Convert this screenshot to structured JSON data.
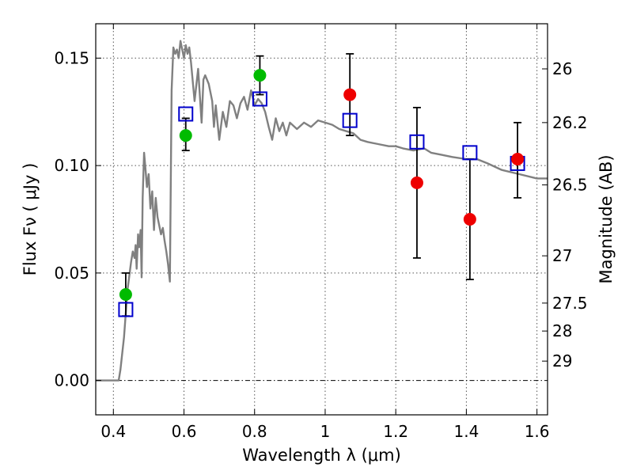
{
  "chart_data": {
    "type": "scatter",
    "xlabel": "Wavelength  λ (μm)",
    "ylabel": "Flux  Fν  ( μJy )",
    "y2label": "Magnitude (AB)",
    "xlim": [
      0.35,
      1.63
    ],
    "ylim": [
      -0.016,
      0.166
    ],
    "x_ticks": [
      0.4,
      0.6,
      0.8,
      1.0,
      1.2,
      1.4,
      1.6
    ],
    "x_tick_labels": [
      "0.4",
      "0.6",
      "0.8",
      "1",
      "1.2",
      "1.4",
      "1.6"
    ],
    "y_ticks": [
      0.0,
      0.05,
      0.1,
      0.15
    ],
    "y_tick_labels": [
      "0.00",
      "0.05",
      "0.10",
      "0.15"
    ],
    "y2_ticks": [
      {
        "label": "26",
        "flux": 0.145
      },
      {
        "label": "26.2",
        "flux": 0.12
      },
      {
        "label": "26.5",
        "flux": 0.091
      },
      {
        "label": "27",
        "flux": 0.058
      },
      {
        "label": "27.5",
        "flux": 0.036
      },
      {
        "label": "28",
        "flux": 0.023
      },
      {
        "label": "29",
        "flux": 0.009
      }
    ],
    "grid": true,
    "zero_line": true,
    "series": [
      {
        "kind": "line",
        "color": "#808080",
        "x": [
          0.35,
          0.415,
          0.42,
          0.43,
          0.44,
          0.45,
          0.455,
          0.46,
          0.463,
          0.466,
          0.47,
          0.473,
          0.477,
          0.48,
          0.483,
          0.487,
          0.49,
          0.495,
          0.5,
          0.505,
          0.51,
          0.515,
          0.52,
          0.525,
          0.53,
          0.535,
          0.54,
          0.545,
          0.55,
          0.555,
          0.56,
          0.565,
          0.57,
          0.575,
          0.58,
          0.585,
          0.59,
          0.595,
          0.6,
          0.605,
          0.61,
          0.615,
          0.62,
          0.63,
          0.64,
          0.65,
          0.655,
          0.66,
          0.67,
          0.68,
          0.685,
          0.69,
          0.7,
          0.71,
          0.72,
          0.73,
          0.74,
          0.75,
          0.76,
          0.77,
          0.78,
          0.79,
          0.8,
          0.81,
          0.82,
          0.83,
          0.84,
          0.85,
          0.86,
          0.87,
          0.88,
          0.89,
          0.9,
          0.92,
          0.94,
          0.96,
          0.98,
          1.0,
          1.02,
          1.04,
          1.06,
          1.08,
          1.1,
          1.12,
          1.15,
          1.18,
          1.2,
          1.22,
          1.25,
          1.28,
          1.3,
          1.33,
          1.36,
          1.4,
          1.43,
          1.46,
          1.5,
          1.55,
          1.6,
          1.63
        ],
        "y": [
          0.0,
          0.0,
          0.005,
          0.02,
          0.042,
          0.055,
          0.06,
          0.057,
          0.063,
          0.052,
          0.068,
          0.062,
          0.07,
          0.048,
          0.085,
          0.106,
          0.1,
          0.09,
          0.096,
          0.08,
          0.088,
          0.07,
          0.085,
          0.076,
          0.072,
          0.068,
          0.071,
          0.065,
          0.06,
          0.054,
          0.046,
          0.135,
          0.155,
          0.152,
          0.154,
          0.15,
          0.158,
          0.154,
          0.15,
          0.156,
          0.152,
          0.155,
          0.148,
          0.13,
          0.145,
          0.12,
          0.14,
          0.142,
          0.138,
          0.13,
          0.118,
          0.128,
          0.112,
          0.125,
          0.118,
          0.13,
          0.128,
          0.122,
          0.129,
          0.132,
          0.126,
          0.135,
          0.128,
          0.131,
          0.129,
          0.125,
          0.118,
          0.112,
          0.122,
          0.116,
          0.12,
          0.114,
          0.12,
          0.117,
          0.12,
          0.118,
          0.121,
          0.12,
          0.119,
          0.117,
          0.116,
          0.115,
          0.112,
          0.111,
          0.11,
          0.109,
          0.109,
          0.108,
          0.107,
          0.108,
          0.106,
          0.105,
          0.104,
          0.103,
          0.103,
          0.101,
          0.098,
          0.096,
          0.094,
          0.094
        ]
      },
      {
        "kind": "points",
        "marker": "open-square",
        "color": "#0000cc",
        "x": [
          0.435,
          0.605,
          0.815,
          1.07,
          1.26,
          1.41,
          1.545
        ],
        "y": [
          0.033,
          0.124,
          0.131,
          0.121,
          0.111,
          0.106,
          0.101
        ]
      },
      {
        "kind": "points",
        "marker": "circle",
        "color": "#00bb00",
        "x": [
          0.435,
          0.605,
          0.815
        ],
        "y": [
          0.04,
          0.114,
          0.142
        ]
      },
      {
        "kind": "points",
        "marker": "circle",
        "color": "#ee0000",
        "x": [
          1.07,
          1.26,
          1.41,
          1.545
        ],
        "y": [
          0.133,
          0.092,
          0.075,
          0.103
        ]
      }
    ],
    "error_bars": [
      {
        "x": 0.435,
        "lo": 0.03,
        "hi": 0.05
      },
      {
        "x": 0.605,
        "lo": 0.107,
        "hi": 0.122
      },
      {
        "x": 0.815,
        "lo": 0.133,
        "hi": 0.151
      },
      {
        "x": 1.07,
        "lo": 0.114,
        "hi": 0.152
      },
      {
        "x": 1.26,
        "lo": 0.057,
        "hi": 0.127
      },
      {
        "x": 1.41,
        "lo": 0.047,
        "hi": 0.103
      },
      {
        "x": 1.545,
        "lo": 0.085,
        "hi": 0.12
      }
    ]
  }
}
